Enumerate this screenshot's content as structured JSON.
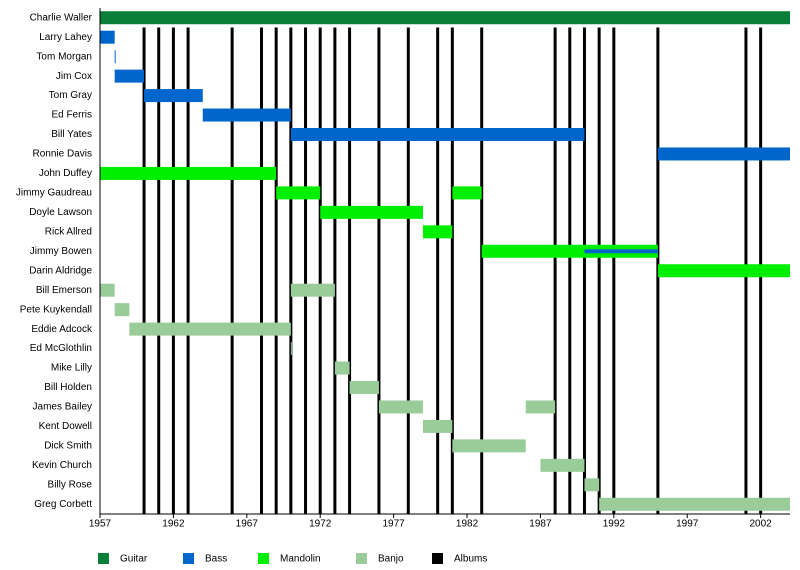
{
  "chart_data": {
    "type": "timeline",
    "xlim": [
      1957,
      2004
    ],
    "xticks": [
      1957,
      1962,
      1967,
      1972,
      1977,
      1982,
      1987,
      1992,
      1997,
      2002
    ],
    "roles": [
      {
        "name": "Guitar",
        "color": "#0a7f3a"
      },
      {
        "name": "Bass",
        "color": "#0066cc"
      },
      {
        "name": "Mandolin",
        "color": "#00ee00"
      },
      {
        "name": "Banjo",
        "color": "#99cc99"
      },
      {
        "name": "Albums",
        "color": "#000000"
      }
    ],
    "albums": [
      1960,
      1961,
      1962,
      1963,
      1966,
      1968,
      1969,
      1970,
      1971,
      1972,
      1973,
      1974,
      1976,
      1978,
      1980,
      1981,
      1983,
      1988,
      1989,
      1990,
      1991,
      1992,
      1995,
      2001,
      2002
    ],
    "members": [
      {
        "name": "Charlie Waller",
        "periods": [
          {
            "role": 0,
            "start": 1957,
            "end": 2004
          }
        ]
      },
      {
        "name": "Larry Lahey",
        "periods": [
          {
            "role": 1,
            "start": 1957,
            "end": 1958
          }
        ]
      },
      {
        "name": "Tom Morgan",
        "periods": [
          {
            "role": 1,
            "start": 1958,
            "end": 1958
          }
        ]
      },
      {
        "name": "Jim Cox",
        "periods": [
          {
            "role": 1,
            "start": 1958,
            "end": 1960
          }
        ]
      },
      {
        "name": "Tom Gray",
        "periods": [
          {
            "role": 1,
            "start": 1960,
            "end": 1964
          }
        ]
      },
      {
        "name": "Ed Ferris",
        "periods": [
          {
            "role": 1,
            "start": 1964,
            "end": 1970
          }
        ]
      },
      {
        "name": "Bill Yates",
        "periods": [
          {
            "role": 1,
            "start": 1970,
            "end": 1990
          }
        ]
      },
      {
        "name": "Ronnie Davis",
        "periods": [
          {
            "role": 1,
            "start": 1995,
            "end": 2004
          }
        ]
      },
      {
        "name": "John Duffey",
        "periods": [
          {
            "role": 2,
            "start": 1957,
            "end": 1969
          }
        ]
      },
      {
        "name": "Jimmy Gaudreau",
        "periods": [
          {
            "role": 2,
            "start": 1969,
            "end": 1972
          },
          {
            "role": 2,
            "start": 1981,
            "end": 1983
          }
        ]
      },
      {
        "name": "Doyle Lawson",
        "periods": [
          {
            "role": 2,
            "start": 1972,
            "end": 1979
          }
        ]
      },
      {
        "name": "Rick Allred",
        "periods": [
          {
            "role": 2,
            "start": 1979,
            "end": 1981
          }
        ]
      },
      {
        "name": "Jimmy Bowen",
        "periods": [
          {
            "role": 2,
            "start": 1983,
            "end": 1995
          },
          {
            "role": 1,
            "start": 1990,
            "end": 1995
          }
        ]
      },
      {
        "name": "Darin Aldridge",
        "periods": [
          {
            "role": 2,
            "start": 1995,
            "end": 2004
          }
        ]
      },
      {
        "name": "Bill Emerson",
        "periods": [
          {
            "role": 3,
            "start": 1957,
            "end": 1958
          },
          {
            "role": 3,
            "start": 1970,
            "end": 1973
          }
        ]
      },
      {
        "name": "Pete Kuykendall",
        "periods": [
          {
            "role": 3,
            "start": 1958,
            "end": 1959
          }
        ]
      },
      {
        "name": "Eddie Adcock",
        "periods": [
          {
            "role": 3,
            "start": 1959,
            "end": 1970
          }
        ]
      },
      {
        "name": "Ed McGlothlin",
        "periods": [
          {
            "role": 3,
            "start": 1970,
            "end": 1970
          }
        ]
      },
      {
        "name": "Mike Lilly",
        "periods": [
          {
            "role": 3,
            "start": 1973,
            "end": 1974
          }
        ]
      },
      {
        "name": "Bill Holden",
        "periods": [
          {
            "role": 3,
            "start": 1974,
            "end": 1976
          }
        ]
      },
      {
        "name": "James Bailey",
        "periods": [
          {
            "role": 3,
            "start": 1976,
            "end": 1979
          },
          {
            "role": 3,
            "start": 1986,
            "end": 1988
          }
        ]
      },
      {
        "name": "Kent Dowell",
        "periods": [
          {
            "role": 3,
            "start": 1979,
            "end": 1981
          }
        ]
      },
      {
        "name": "Dick Smith",
        "periods": [
          {
            "role": 3,
            "start": 1981,
            "end": 1986
          }
        ]
      },
      {
        "name": "Kevin Church",
        "periods": [
          {
            "role": 3,
            "start": 1987,
            "end": 1990
          }
        ]
      },
      {
        "name": "Billy Rose",
        "periods": [
          {
            "role": 3,
            "start": 1990,
            "end": 1991
          }
        ]
      },
      {
        "name": "Greg Corbett",
        "periods": [
          {
            "role": 3,
            "start": 1991,
            "end": 2004
          }
        ]
      }
    ]
  }
}
